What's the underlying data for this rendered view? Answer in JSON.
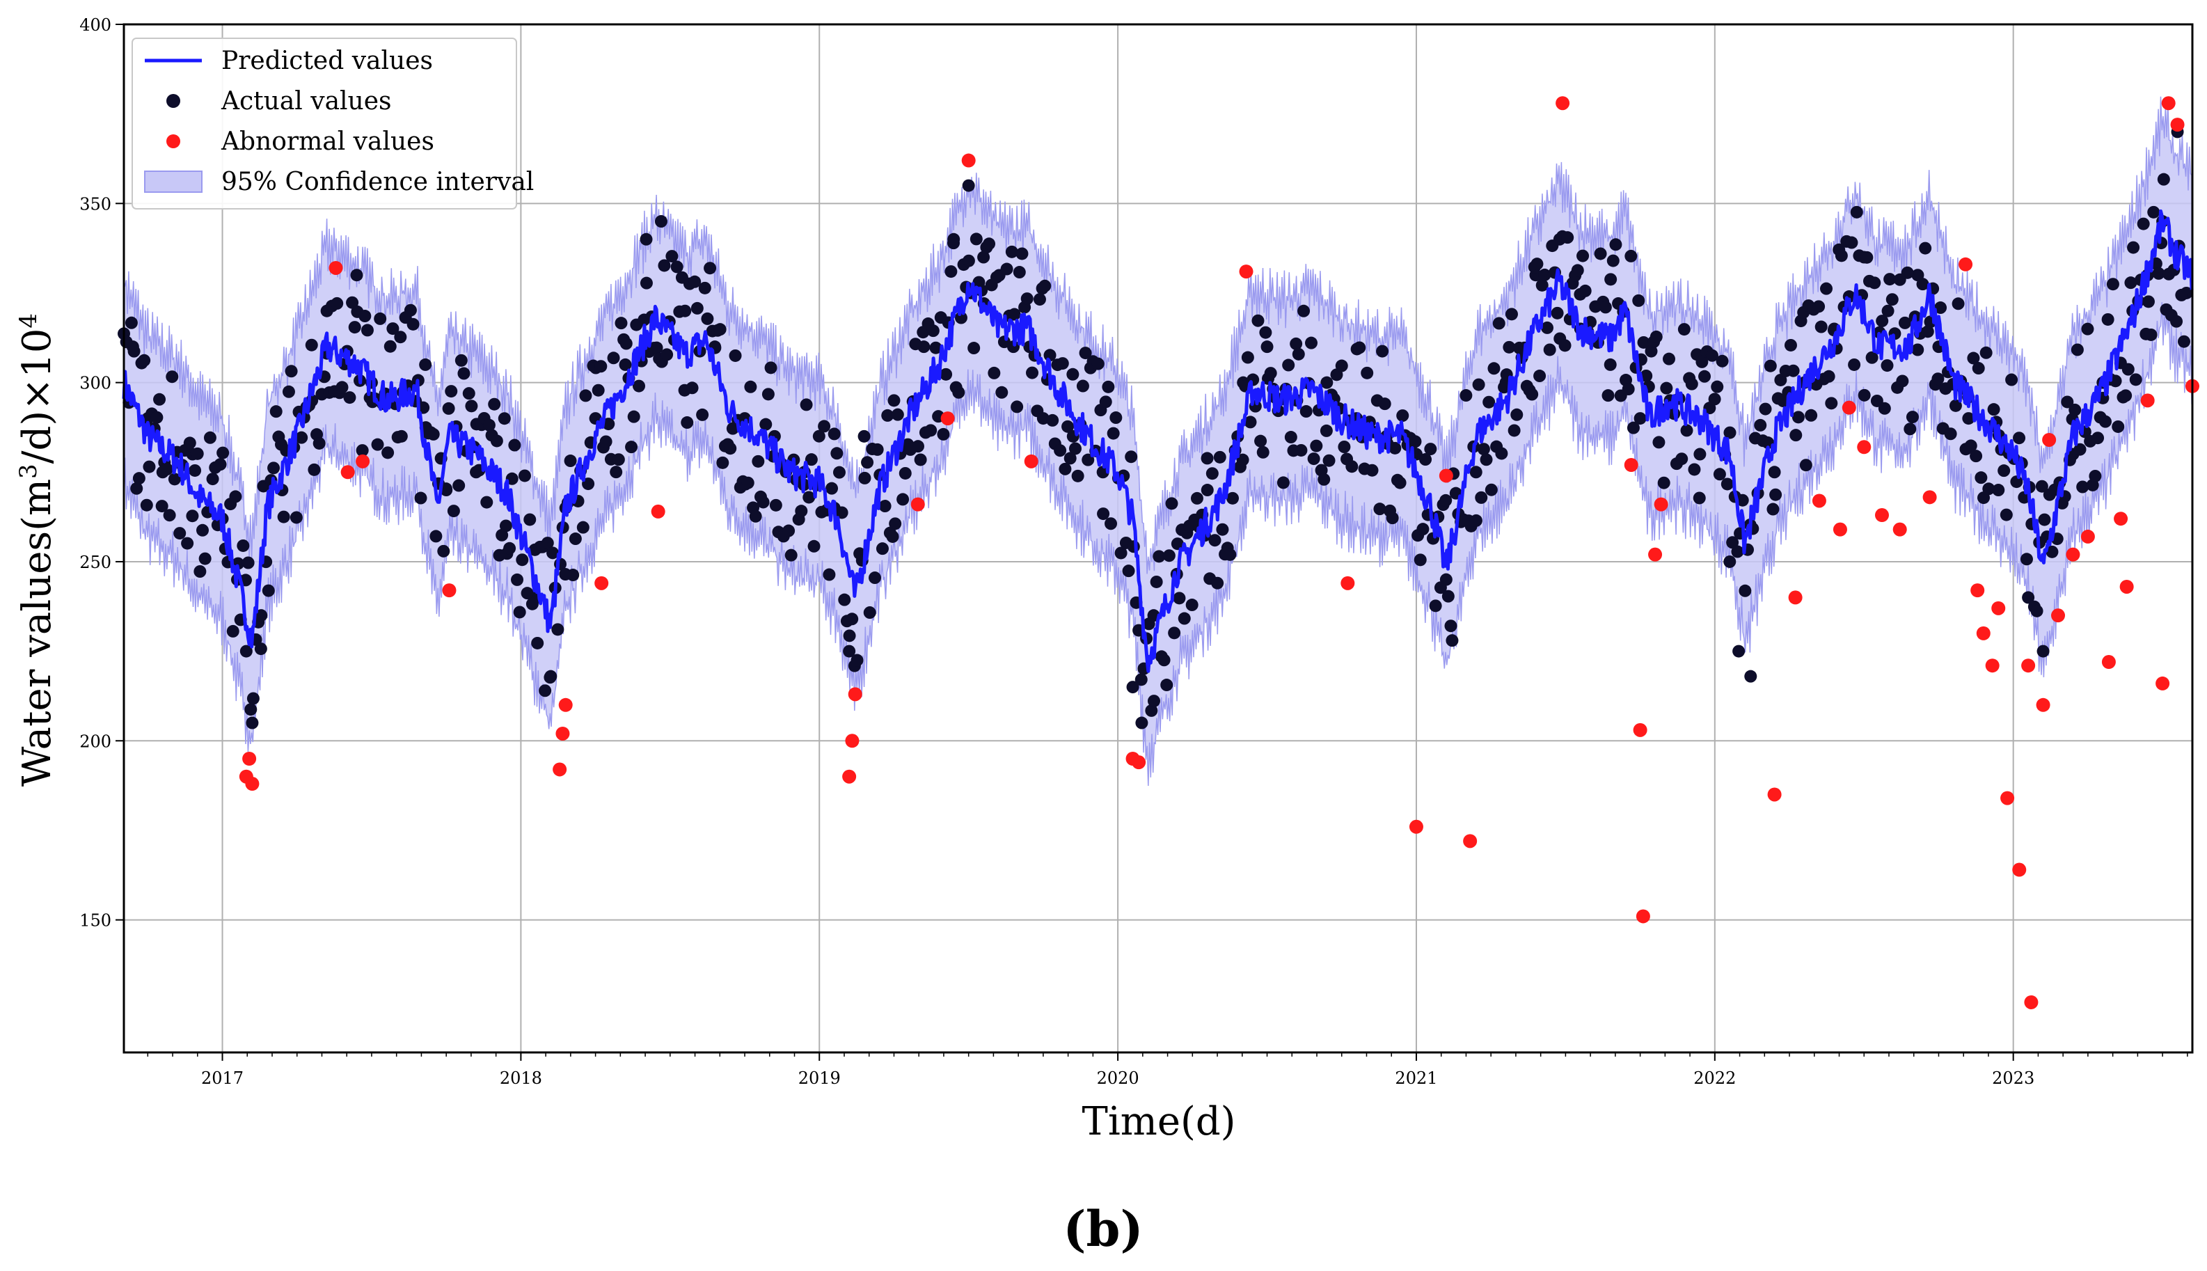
{
  "panel_label": "(b)",
  "colors": {
    "predicted": "#1a1aff",
    "actual": "#0d0d2a",
    "abnormal": "#ff1a1a",
    "band_fill": "#c8c8f7",
    "band_edge": "#9a9aef",
    "grid": "#b0b0b0"
  },
  "chart_data": {
    "type": "line",
    "title": "",
    "xlabel": "Time(d)",
    "ylabel_base": "Water values(m",
    "ylabel_sup1": "3",
    "ylabel_mid": "/d)×10",
    "ylabel_sup2": "4",
    "xlim": [
      2016.67,
      2023.6
    ],
    "ylim": [
      113,
      400
    ],
    "x_ticks": [
      2017,
      2018,
      2019,
      2020,
      2021,
      2022,
      2023
    ],
    "x_tick_labels": [
      "2017",
      "2018",
      "2019",
      "2020",
      "2021",
      "2022",
      "2023"
    ],
    "y_ticks": [
      150,
      200,
      250,
      300,
      350,
      400
    ],
    "y_tick_labels": [
      "150",
      "200",
      "250",
      "300",
      "350",
      "400"
    ],
    "grid": true,
    "legend_position": "top-left",
    "legend": [
      "Predicted values",
      "Actual values",
      "Abnormal values",
      "95% Confidence interval"
    ],
    "ci_half_width": 28,
    "predicted": {
      "name": "Predicted values",
      "x": [
        2016.67,
        2016.75,
        2016.85,
        2016.92,
        2017.0,
        2017.05,
        2017.1,
        2017.15,
        2017.25,
        2017.35,
        2017.45,
        2017.55,
        2017.65,
        2017.72,
        2017.76,
        2017.85,
        2017.95,
        2018.05,
        2018.1,
        2018.15,
        2018.25,
        2018.35,
        2018.45,
        2018.55,
        2018.62,
        2018.7,
        2018.8,
        2018.9,
        2019.0,
        2019.06,
        2019.12,
        2019.2,
        2019.3,
        2019.4,
        2019.5,
        2019.6,
        2019.7,
        2019.8,
        2019.9,
        2020.0,
        2020.05,
        2020.1,
        2020.2,
        2020.35,
        2020.45,
        2020.55,
        2020.65,
        2020.75,
        2020.85,
        2020.95,
        2021.05,
        2021.1,
        2021.2,
        2021.3,
        2021.4,
        2021.48,
        2021.55,
        2021.65,
        2021.7,
        2021.78,
        2021.85,
        2021.95,
        2022.05,
        2022.1,
        2022.2,
        2022.3,
        2022.4,
        2022.47,
        2022.55,
        2022.65,
        2022.72,
        2022.8,
        2022.9,
        2023.0,
        2023.05,
        2023.1,
        2023.2,
        2023.3,
        2023.4,
        2023.5,
        2023.55,
        2023.6
      ],
      "y": [
        300,
        285,
        278,
        268,
        262,
        245,
        228,
        265,
        285,
        310,
        305,
        295,
        298,
        265,
        285,
        280,
        270,
        245,
        232,
        265,
        285,
        300,
        318,
        308,
        312,
        292,
        285,
        275,
        272,
        262,
        240,
        270,
        290,
        305,
        328,
        315,
        315,
        298,
        285,
        275,
        262,
        222,
        248,
        268,
        298,
        295,
        298,
        290,
        285,
        285,
        265,
        248,
        285,
        295,
        315,
        328,
        315,
        312,
        320,
        290,
        295,
        290,
        280,
        255,
        285,
        300,
        312,
        325,
        310,
        310,
        325,
        300,
        290,
        280,
        270,
        248,
        285,
        298,
        318,
        345,
        335,
        330
      ]
    },
    "actual": {
      "name": "Actual values",
      "x": [
        2016.7,
        2016.75,
        2016.8,
        2016.9,
        2017.0,
        2017.05,
        2017.08,
        2017.1,
        2017.13,
        2017.2,
        2017.3,
        2017.35,
        2017.45,
        2017.5,
        2017.6,
        2017.68,
        2017.75,
        2017.85,
        2017.95,
        2018.05,
        2018.1,
        2018.15,
        2018.25,
        2018.35,
        2018.42,
        2018.47,
        2018.55,
        2018.65,
        2018.75,
        2018.85,
        2018.95,
        2019.05,
        2019.1,
        2019.15,
        2019.25,
        2019.35,
        2019.45,
        2019.5,
        2019.55,
        2019.65,
        2019.75,
        2019.85,
        2019.95,
        2020.05,
        2020.08,
        2020.12,
        2020.2,
        2020.3,
        2020.42,
        2020.5,
        2020.6,
        2020.7,
        2020.8,
        2020.9,
        2021.0,
        2021.1,
        2021.12,
        2021.2,
        2021.3,
        2021.4,
        2021.48,
        2021.55,
        2021.65,
        2021.75,
        2021.85,
        2021.95,
        2022.05,
        2022.08,
        2022.12,
        2022.2,
        2022.3,
        2022.4,
        2022.5,
        2022.58,
        2022.68,
        2022.75,
        2022.85,
        2022.95,
        2023.05,
        2023.1,
        2023.2,
        2023.3,
        2023.4,
        2023.45,
        2023.5,
        2023.55,
        2023.58
      ],
      "y": [
        310,
        290,
        275,
        280,
        262,
        245,
        225,
        205,
        235,
        270,
        295,
        320,
        330,
        300,
        285,
        305,
        270,
        275,
        260,
        240,
        218,
        265,
        290,
        305,
        340,
        345,
        320,
        310,
        290,
        285,
        275,
        265,
        225,
        285,
        295,
        310,
        340,
        355,
        335,
        310,
        290,
        285,
        275,
        215,
        205,
        235,
        255,
        270,
        300,
        310,
        295,
        300,
        290,
        285,
        280,
        245,
        228,
        275,
        300,
        330,
        340,
        315,
        305,
        290,
        295,
        280,
        250,
        225,
        218,
        275,
        300,
        315,
        335,
        320,
        330,
        310,
        290,
        270,
        240,
        225,
        280,
        300,
        320,
        330,
        345,
        370,
        325
      ]
    },
    "abnormal": {
      "name": "Abnormal values",
      "x": [
        2017.08,
        2017.09,
        2017.1,
        2017.38,
        2017.42,
        2017.47,
        2017.76,
        2018.13,
        2018.14,
        2018.15,
        2018.27,
        2018.46,
        2019.1,
        2019.11,
        2019.12,
        2019.33,
        2019.43,
        2019.5,
        2019.71,
        2020.05,
        2020.07,
        2020.43,
        2020.77,
        2021.0,
        2021.1,
        2021.18,
        2021.49,
        2021.72,
        2021.75,
        2021.76,
        2021.8,
        2021.82,
        2022.2,
        2022.27,
        2022.35,
        2022.42,
        2022.45,
        2022.5,
        2022.56,
        2022.62,
        2022.72,
        2022.84,
        2022.88,
        2022.9,
        2022.93,
        2022.95,
        2022.98,
        2023.02,
        2023.05,
        2023.06,
        2023.1,
        2023.12,
        2023.15,
        2023.2,
        2023.25,
        2023.32,
        2023.36,
        2023.38,
        2023.45,
        2023.5,
        2023.52,
        2023.55,
        2023.6
      ],
      "y": [
        190,
        195,
        188,
        332,
        275,
        278,
        242,
        192,
        202,
        210,
        244,
        264,
        190,
        200,
        213,
        266,
        290,
        362,
        278,
        195,
        194,
        331,
        244,
        176,
        274,
        172,
        378,
        277,
        203,
        151,
        252,
        266,
        185,
        240,
        267,
        259,
        293,
        282,
        263,
        259,
        268,
        333,
        242,
        230,
        221,
        237,
        184,
        164,
        221,
        127,
        210,
        284,
        235,
        252,
        257,
        222,
        262,
        243,
        295,
        216,
        378,
        372,
        299
      ]
    }
  }
}
